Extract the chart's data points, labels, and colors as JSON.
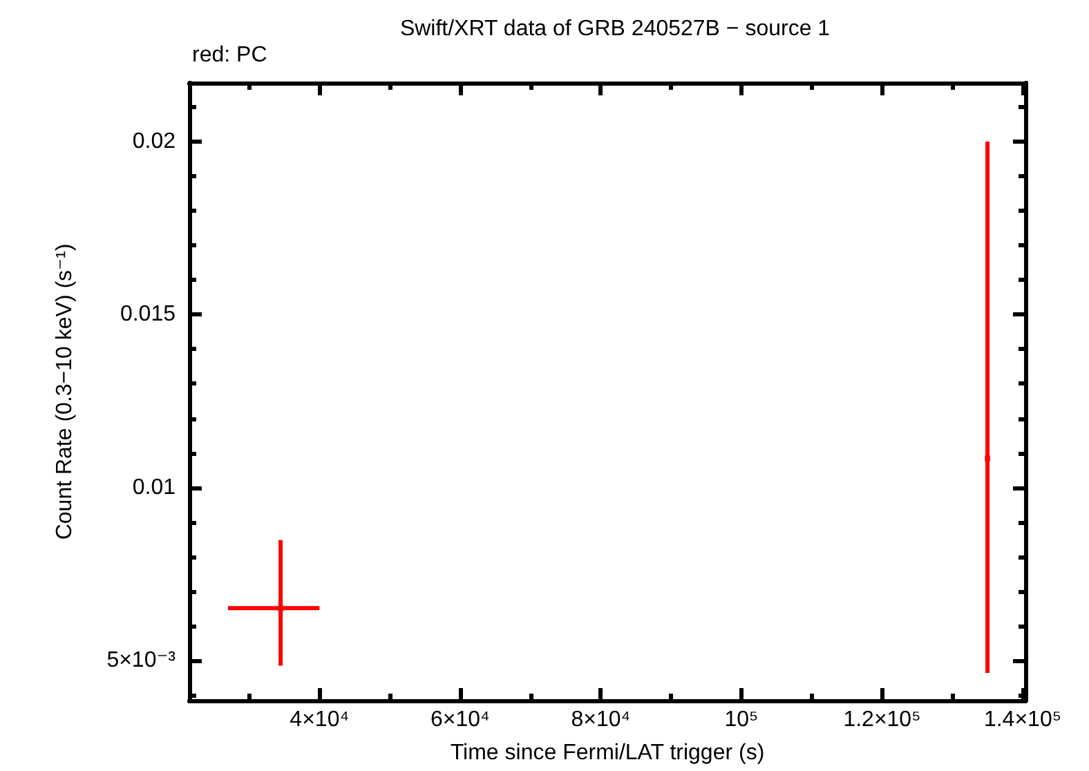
{
  "chart_data": {
    "type": "scatter",
    "title": "Swift/XRT data of GRB 240527B − source 1",
    "xlabel": "Time since Fermi/LAT trigger (s)",
    "ylabel": "Count Rate (0.3−10 keV) (s⁻¹)",
    "annotations": [
      "red: PC"
    ],
    "x": [
      34480,
      135000
    ],
    "series": [
      {
        "color": "#ff0000",
        "values": [
          0.00651,
          0.01084
        ],
        "errors": [
          [
            0.00485,
            0.00848
          ],
          [
            0.00464,
            0.02
          ]
        ],
        "xerrors": [
          [
            27000,
            40000
          ],
          null
        ]
      }
    ],
    "grid": false,
    "xlim": [
      21500,
      140400
    ],
    "ylim": [
      0.00384,
      0.0217
    ],
    "xticks": [
      {
        "value": 30000,
        "label": null
      },
      {
        "value": 40000,
        "label": "4×10⁴"
      },
      {
        "value": 50000,
        "label": null
      },
      {
        "value": 60000,
        "label": "6×10⁴"
      },
      {
        "value": 70000,
        "label": null
      },
      {
        "value": 80000,
        "label": "8×10⁴"
      },
      {
        "value": 90000,
        "label": null
      },
      {
        "value": 100000,
        "label": "10⁵"
      },
      {
        "value": 110000,
        "label": null
      },
      {
        "value": 120000,
        "label": "1.2×10⁵"
      },
      {
        "value": 130000,
        "label": null
      },
      {
        "value": 140000,
        "label": "1.4×10⁵"
      }
    ],
    "yticks": [
      {
        "value": 0.004,
        "label": null
      },
      {
        "value": 0.005,
        "label": "5×10⁻³"
      },
      {
        "value": 0.006,
        "label": null
      },
      {
        "value": 0.007,
        "label": null
      },
      {
        "value": 0.008,
        "label": null
      },
      {
        "value": 0.009,
        "label": null
      },
      0.01,
      {
        "value": 0.011,
        "label": null
      },
      {
        "value": 0.012,
        "label": null
      },
      {
        "value": 0.013,
        "label": null
      },
      {
        "value": 0.014,
        "label": null
      },
      0.015,
      {
        "value": 0.016,
        "label": null
      },
      {
        "value": 0.017,
        "label": null
      },
      {
        "value": 0.018,
        "label": null
      },
      {
        "value": 0.019,
        "label": null
      },
      0.02,
      {
        "value": 0.021,
        "label": null
      }
    ]
  }
}
